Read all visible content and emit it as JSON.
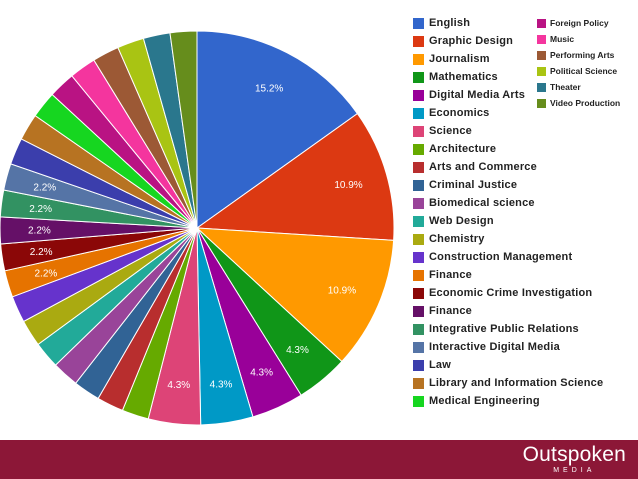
{
  "chart_data": {
    "type": "pie",
    "slices": [
      {
        "label": "English",
        "value": 15.2,
        "color": "#3266cc",
        "data_label": "15.2%"
      },
      {
        "label": "Graphic Design",
        "value": 10.9,
        "color": "#dc3912",
        "data_label": "10.9%"
      },
      {
        "label": "Journalism",
        "value": 10.9,
        "color": "#ff9900",
        "data_label": "10.9%"
      },
      {
        "label": "Mathematics",
        "value": 4.3,
        "color": "#109618",
        "data_label": "4.3%"
      },
      {
        "label": "Digital Media Arts",
        "value": 4.3,
        "color": "#990099",
        "data_label": "4.3%"
      },
      {
        "label": "Economics",
        "value": 4.3,
        "color": "#0099c6",
        "data_label": "4.3%"
      },
      {
        "label": "Science",
        "value": 4.3,
        "color": "#dd4477",
        "data_label": "4.3%"
      },
      {
        "label": "Architecture",
        "value": 2.2,
        "color": "#66aa00",
        "data_label": ""
      },
      {
        "label": "Arts and Commerce",
        "value": 2.2,
        "color": "#b82e2e",
        "data_label": ""
      },
      {
        "label": "Criminal Justice",
        "value": 2.2,
        "color": "#316395",
        "data_label": ""
      },
      {
        "label": "Biomedical science",
        "value": 2.2,
        "color": "#994499",
        "data_label": ""
      },
      {
        "label": "Web Design",
        "value": 2.2,
        "color": "#22aa99",
        "data_label": ""
      },
      {
        "label": "Chemistry",
        "value": 2.2,
        "color": "#aaaa11",
        "data_label": ""
      },
      {
        "label": "Construction Management",
        "value": 2.2,
        "color": "#6633cc",
        "data_label": ""
      },
      {
        "label": "Finance",
        "value": 2.2,
        "color": "#e67300",
        "data_label": "2.2%"
      },
      {
        "label": "Economic Crime Investigation",
        "value": 2.2,
        "color": "#8b0707",
        "data_label": "2.2%"
      },
      {
        "label": "Finance",
        "value": 2.2,
        "color": "#651067",
        "data_label": "2.2%"
      },
      {
        "label": "Integrative Public Relations",
        "value": 2.2,
        "color": "#329262",
        "data_label": "2.2%"
      },
      {
        "label": "Interactive Digital Media",
        "value": 2.2,
        "color": "#5574a6",
        "data_label": "2.2%"
      },
      {
        "label": "Law",
        "value": 2.2,
        "color": "#3b3eac",
        "data_label": ""
      },
      {
        "label": "Library and Information Science",
        "value": 2.2,
        "color": "#b77322",
        "data_label": ""
      },
      {
        "label": "Medical Engineering",
        "value": 2.2,
        "color": "#16d620",
        "data_label": ""
      },
      {
        "label": "Foreign Policy",
        "value": 2.2,
        "color": "#b91383",
        "data_label": ""
      },
      {
        "label": "Music",
        "value": 2.2,
        "color": "#f4359e",
        "data_label": ""
      },
      {
        "label": "Performing Arts",
        "value": 2.2,
        "color": "#9c5935",
        "data_label": ""
      },
      {
        "label": "Political Science",
        "value": 2.2,
        "color": "#a9c413",
        "data_label": ""
      },
      {
        "label": "Theater",
        "value": 2.2,
        "color": "#2a778d",
        "data_label": ""
      },
      {
        "label": "Video Production",
        "value": 2.2,
        "color": "#668d1c",
        "data_label": ""
      }
    ],
    "start": "12 o'clock",
    "direction": "clockwise",
    "legend_position": "right"
  },
  "footer": {
    "brand_name": "Outspoken",
    "brand_sub": "MEDIA",
    "background_color": "#8c1737"
  }
}
